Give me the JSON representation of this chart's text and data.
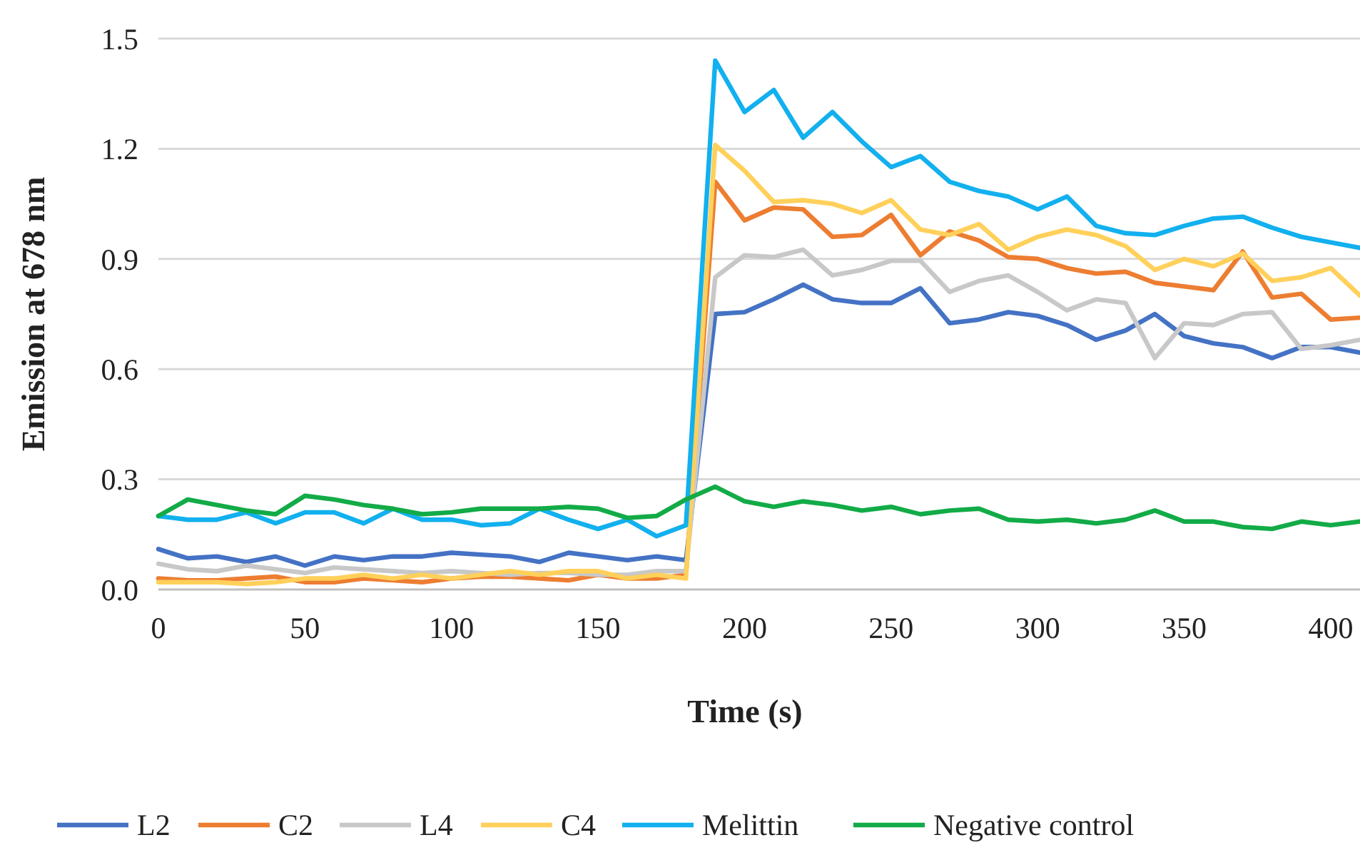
{
  "chart_data": {
    "type": "line",
    "xlabel": "Time (s)",
    "ylabel": "Emission at 678 nm",
    "x": [
      0,
      10,
      20,
      30,
      40,
      50,
      60,
      70,
      80,
      90,
      100,
      110,
      120,
      130,
      140,
      150,
      160,
      170,
      180,
      190,
      200,
      210,
      220,
      230,
      240,
      250,
      260,
      270,
      280,
      290,
      300,
      310,
      320,
      330,
      340,
      350,
      360,
      370,
      380,
      390,
      400,
      410
    ],
    "series": [
      {
        "name": "L2",
        "color": "#4472c4",
        "values": [
          0.11,
          0.085,
          0.09,
          0.075,
          0.09,
          0.065,
          0.09,
          0.08,
          0.09,
          0.09,
          0.1,
          0.095,
          0.09,
          0.075,
          0.1,
          0.09,
          0.08,
          0.09,
          0.08,
          0.75,
          0.755,
          0.79,
          0.83,
          0.79,
          0.78,
          0.78,
          0.82,
          0.725,
          0.735,
          0.755,
          0.745,
          0.72,
          0.68,
          0.705,
          0.75,
          0.69,
          0.67,
          0.66,
          0.63,
          0.66,
          0.66,
          0.645
        ]
      },
      {
        "name": "C2",
        "color": "#ed7d31",
        "values": [
          0.03,
          0.025,
          0.025,
          0.03,
          0.035,
          0.02,
          0.02,
          0.03,
          0.025,
          0.02,
          0.03,
          0.035,
          0.035,
          0.03,
          0.025,
          0.04,
          0.03,
          0.03,
          0.04,
          1.11,
          1.005,
          1.04,
          1.035,
          0.96,
          0.965,
          1.02,
          0.91,
          0.975,
          0.95,
          0.905,
          0.9,
          0.875,
          0.86,
          0.865,
          0.835,
          0.825,
          0.815,
          0.92,
          0.795,
          0.805,
          0.735,
          0.74
        ]
      },
      {
        "name": "L4",
        "color": "#c8c8c8",
        "values": [
          0.07,
          0.055,
          0.05,
          0.065,
          0.055,
          0.045,
          0.06,
          0.055,
          0.05,
          0.045,
          0.05,
          0.045,
          0.04,
          0.045,
          0.045,
          0.04,
          0.04,
          0.05,
          0.05,
          0.85,
          0.91,
          0.905,
          0.925,
          0.855,
          0.87,
          0.895,
          0.895,
          0.81,
          0.84,
          0.855,
          0.81,
          0.76,
          0.79,
          0.78,
          0.63,
          0.725,
          0.72,
          0.75,
          0.755,
          0.655,
          0.665,
          0.68
        ]
      },
      {
        "name": "C4",
        "color": "#ffd05a",
        "values": [
          0.02,
          0.02,
          0.02,
          0.015,
          0.02,
          0.03,
          0.03,
          0.04,
          0.03,
          0.04,
          0.03,
          0.04,
          0.05,
          0.04,
          0.05,
          0.05,
          0.03,
          0.04,
          0.03,
          1.21,
          1.14,
          1.055,
          1.06,
          1.05,
          1.025,
          1.06,
          0.98,
          0.965,
          0.995,
          0.925,
          0.96,
          0.98,
          0.965,
          0.935,
          0.87,
          0.9,
          0.88,
          0.915,
          0.84,
          0.85,
          0.875,
          0.8
        ]
      },
      {
        "name": "Melittin",
        "color": "#12b0ee",
        "values": [
          0.2,
          0.19,
          0.19,
          0.21,
          0.18,
          0.21,
          0.21,
          0.18,
          0.22,
          0.19,
          0.19,
          0.175,
          0.18,
          0.22,
          0.19,
          0.165,
          0.19,
          0.145,
          0.175,
          1.44,
          1.3,
          1.36,
          1.23,
          1.3,
          1.22,
          1.15,
          1.18,
          1.11,
          1.085,
          1.07,
          1.035,
          1.07,
          0.99,
          0.97,
          0.965,
          0.99,
          1.01,
          1.015,
          0.985,
          0.96,
          0.945,
          0.93
        ]
      },
      {
        "name": "Negative control",
        "color": "#12ab47",
        "values": [
          0.2,
          0.245,
          0.23,
          0.215,
          0.205,
          0.255,
          0.245,
          0.23,
          0.22,
          0.205,
          0.21,
          0.22,
          0.22,
          0.22,
          0.225,
          0.22,
          0.195,
          0.2,
          0.245,
          0.28,
          0.24,
          0.225,
          0.24,
          0.23,
          0.215,
          0.225,
          0.205,
          0.215,
          0.22,
          0.19,
          0.185,
          0.19,
          0.18,
          0.19,
          0.215,
          0.185,
          0.185,
          0.17,
          0.165,
          0.185,
          0.175,
          0.185
        ]
      }
    ],
    "xlim": [
      0,
      410
    ],
    "xticks": [
      0,
      50,
      100,
      150,
      200,
      250,
      300,
      350,
      400
    ],
    "ylim": [
      0,
      1.5
    ],
    "yticks": [
      {
        "value": 0,
        "label": "0.0"
      },
      {
        "value": 0.3,
        "label": "0.3"
      },
      {
        "value": 0.6,
        "label": "0.6"
      },
      {
        "value": 0.9,
        "label": "0.9"
      },
      {
        "value": 1.2,
        "label": "1.2"
      },
      {
        "value": 1.5,
        "label": "1.5"
      }
    ],
    "grid": "y",
    "legend": "bottom",
    "marker": "none",
    "line_style": "solid"
  }
}
